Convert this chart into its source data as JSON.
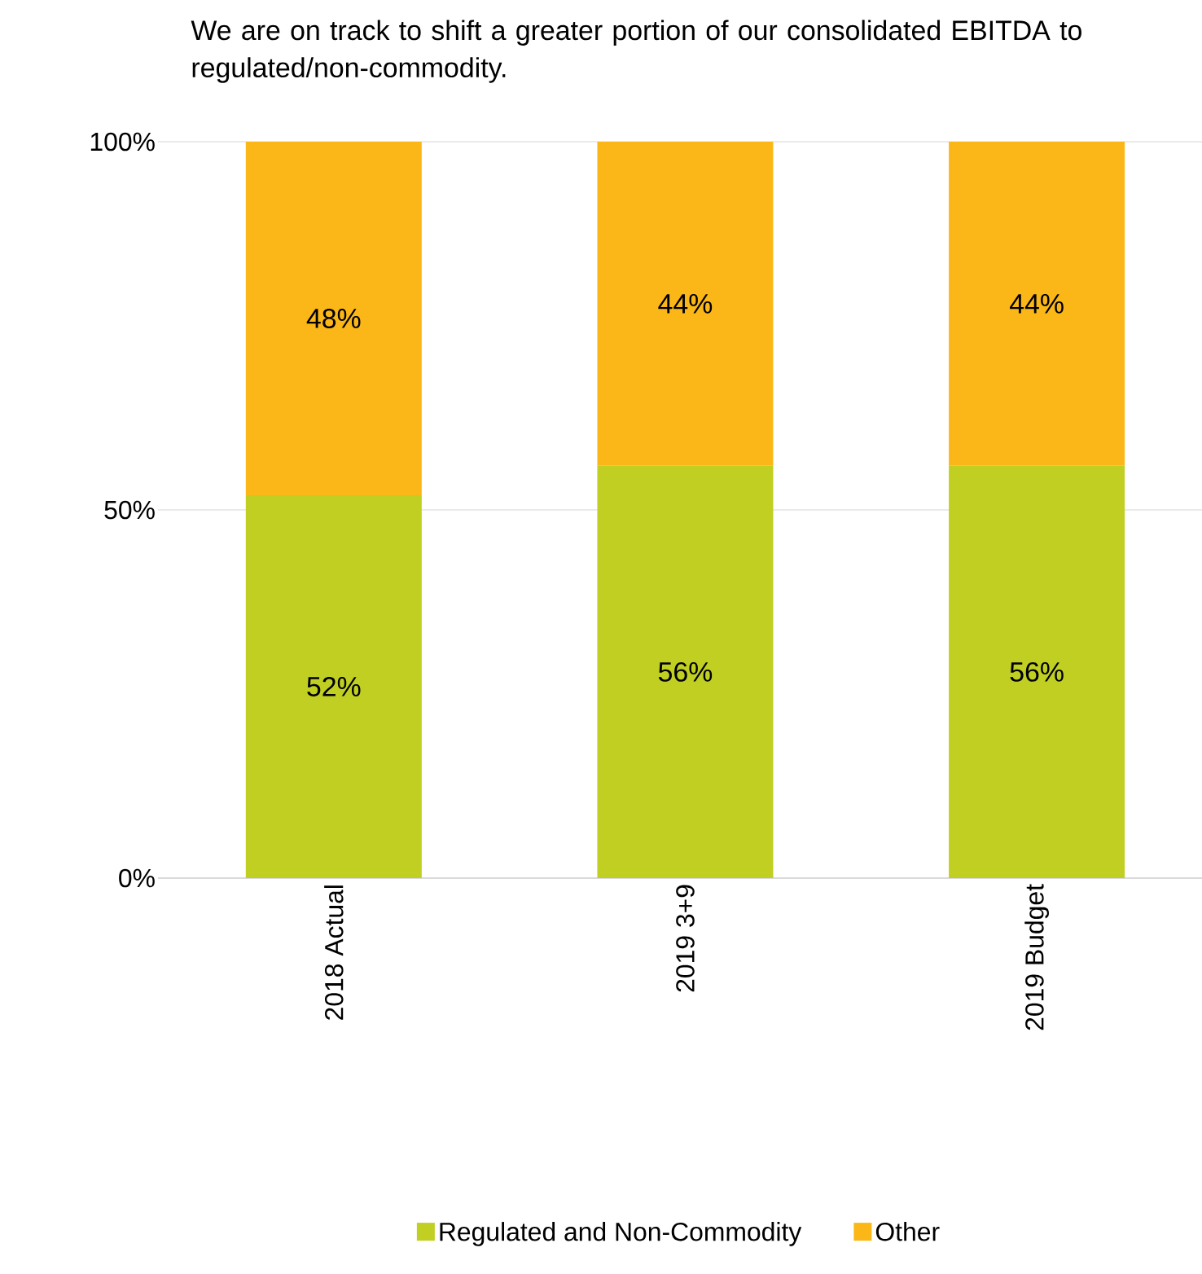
{
  "chart_data": {
    "type": "bar",
    "stacked": true,
    "title": "We are on track to shift a greater portion of our consolidated EBITDA to regulated/non-commodity.",
    "categories": [
      "2018 Actual",
      "2019 3+9",
      "2019 Budget"
    ],
    "series": [
      {
        "name": "Regulated and Non-Commodity",
        "color": "#c0cf22",
        "values": [
          52,
          56,
          56
        ],
        "value_labels": [
          "52%",
          "56%",
          "56%"
        ]
      },
      {
        "name": "Other",
        "color": "#fbb717",
        "values": [
          48,
          44,
          44
        ],
        "value_labels": [
          "48%",
          "44%",
          "44%"
        ]
      }
    ],
    "ylim": [
      0,
      100
    ],
    "yticks": [
      {
        "value": 0,
        "label": "0%"
      },
      {
        "value": 50,
        "label": "50%"
      },
      {
        "value": 100,
        "label": "100%"
      }
    ],
    "grid": "y",
    "legend": "bottom"
  }
}
